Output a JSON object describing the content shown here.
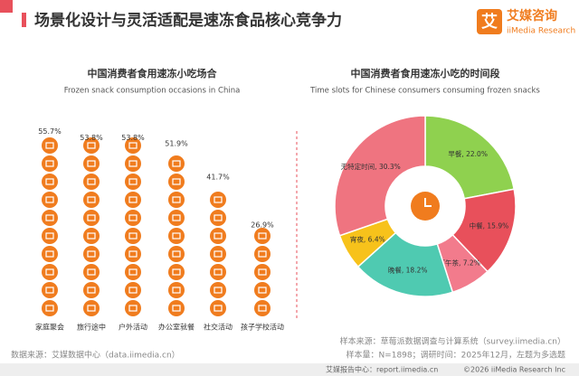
{
  "header": {
    "title": "场景化设计与灵活适配是速冻食品核心竞争力",
    "logo_mark": "艾",
    "logo_name": "艾媒咨询",
    "logo_sub": "iiMedia Research"
  },
  "chart_data": [
    {
      "type": "pictograph",
      "title": "中国消费者食用速冻小吃场合",
      "subtitle": "Frozen snack consumption occasions in China",
      "categories": [
        "家庭聚会",
        "旅行途中",
        "户外活动",
        "办公室就餐",
        "社交活动",
        "孩子学校活动"
      ],
      "values": [
        55.7,
        53.8,
        53.8,
        51.9,
        41.7,
        26.9
      ],
      "value_labels": [
        "55.7%",
        "53.8%",
        "53.8%",
        "51.9%",
        "41.7%",
        "26.9%"
      ],
      "color": "#f07c1e"
    },
    {
      "type": "donut",
      "title": "中国消费者食用速冻小吃的时间段",
      "subtitle": "Time slots for Chinese consumers consuming frozen snacks",
      "values": [
        22.0,
        15.9,
        7.2,
        18.2,
        6.4,
        30.3
      ],
      "value_labels": [
        "早餐, 22.0%",
        "中餐, 15.9%",
        "下午茶, 7.2%",
        "晚餐, 18.2%",
        "宵夜, 6.4%",
        "无特定时间, 30.3%"
      ],
      "colors": [
        "#8fd14f",
        "#e8505b",
        "#f27b8c",
        "#4fcab1",
        "#f7c21b",
        "#ef7480"
      ]
    }
  ],
  "footer": {
    "source": "数据来源：艾媒数据中心（data.iimedia.cn）",
    "sample_source": "样本来源：草莓派数据调查与计算系统（survey.iimedia.cn）",
    "sample": "样本量：N=1898；调研时间：2025年12月，左题为多选题",
    "report": "艾媒报告中心：report.iimedia.cn",
    "copyright": "©2026  iiMedia Research  Inc"
  }
}
